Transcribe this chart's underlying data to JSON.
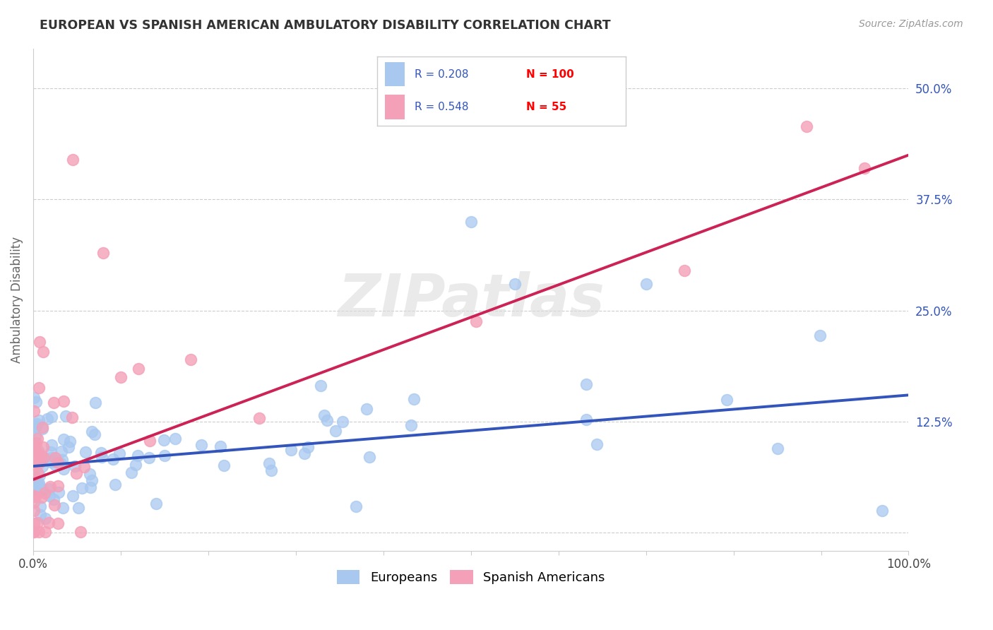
{
  "title": "EUROPEAN VS SPANISH AMERICAN AMBULATORY DISABILITY CORRELATION CHART",
  "source": "Source: ZipAtlas.com",
  "ylabel": "Ambulatory Disability",
  "watermark": "ZIPatlas",
  "xlim": [
    0.0,
    1.0
  ],
  "ylim": [
    -0.02,
    0.545
  ],
  "blue_R": 0.208,
  "blue_N": 100,
  "pink_R": 0.548,
  "pink_N": 55,
  "blue_color": "#a8c8f0",
  "pink_color": "#f4a0b8",
  "blue_line_color": "#3355bb",
  "pink_line_color": "#cc2255",
  "tick_color": "#3355bb",
  "grid_color": "#cccccc",
  "background_color": "#ffffff",
  "blue_line_y0": 0.075,
  "blue_line_y1": 0.155,
  "pink_line_y0": 0.06,
  "pink_line_y1": 0.425
}
